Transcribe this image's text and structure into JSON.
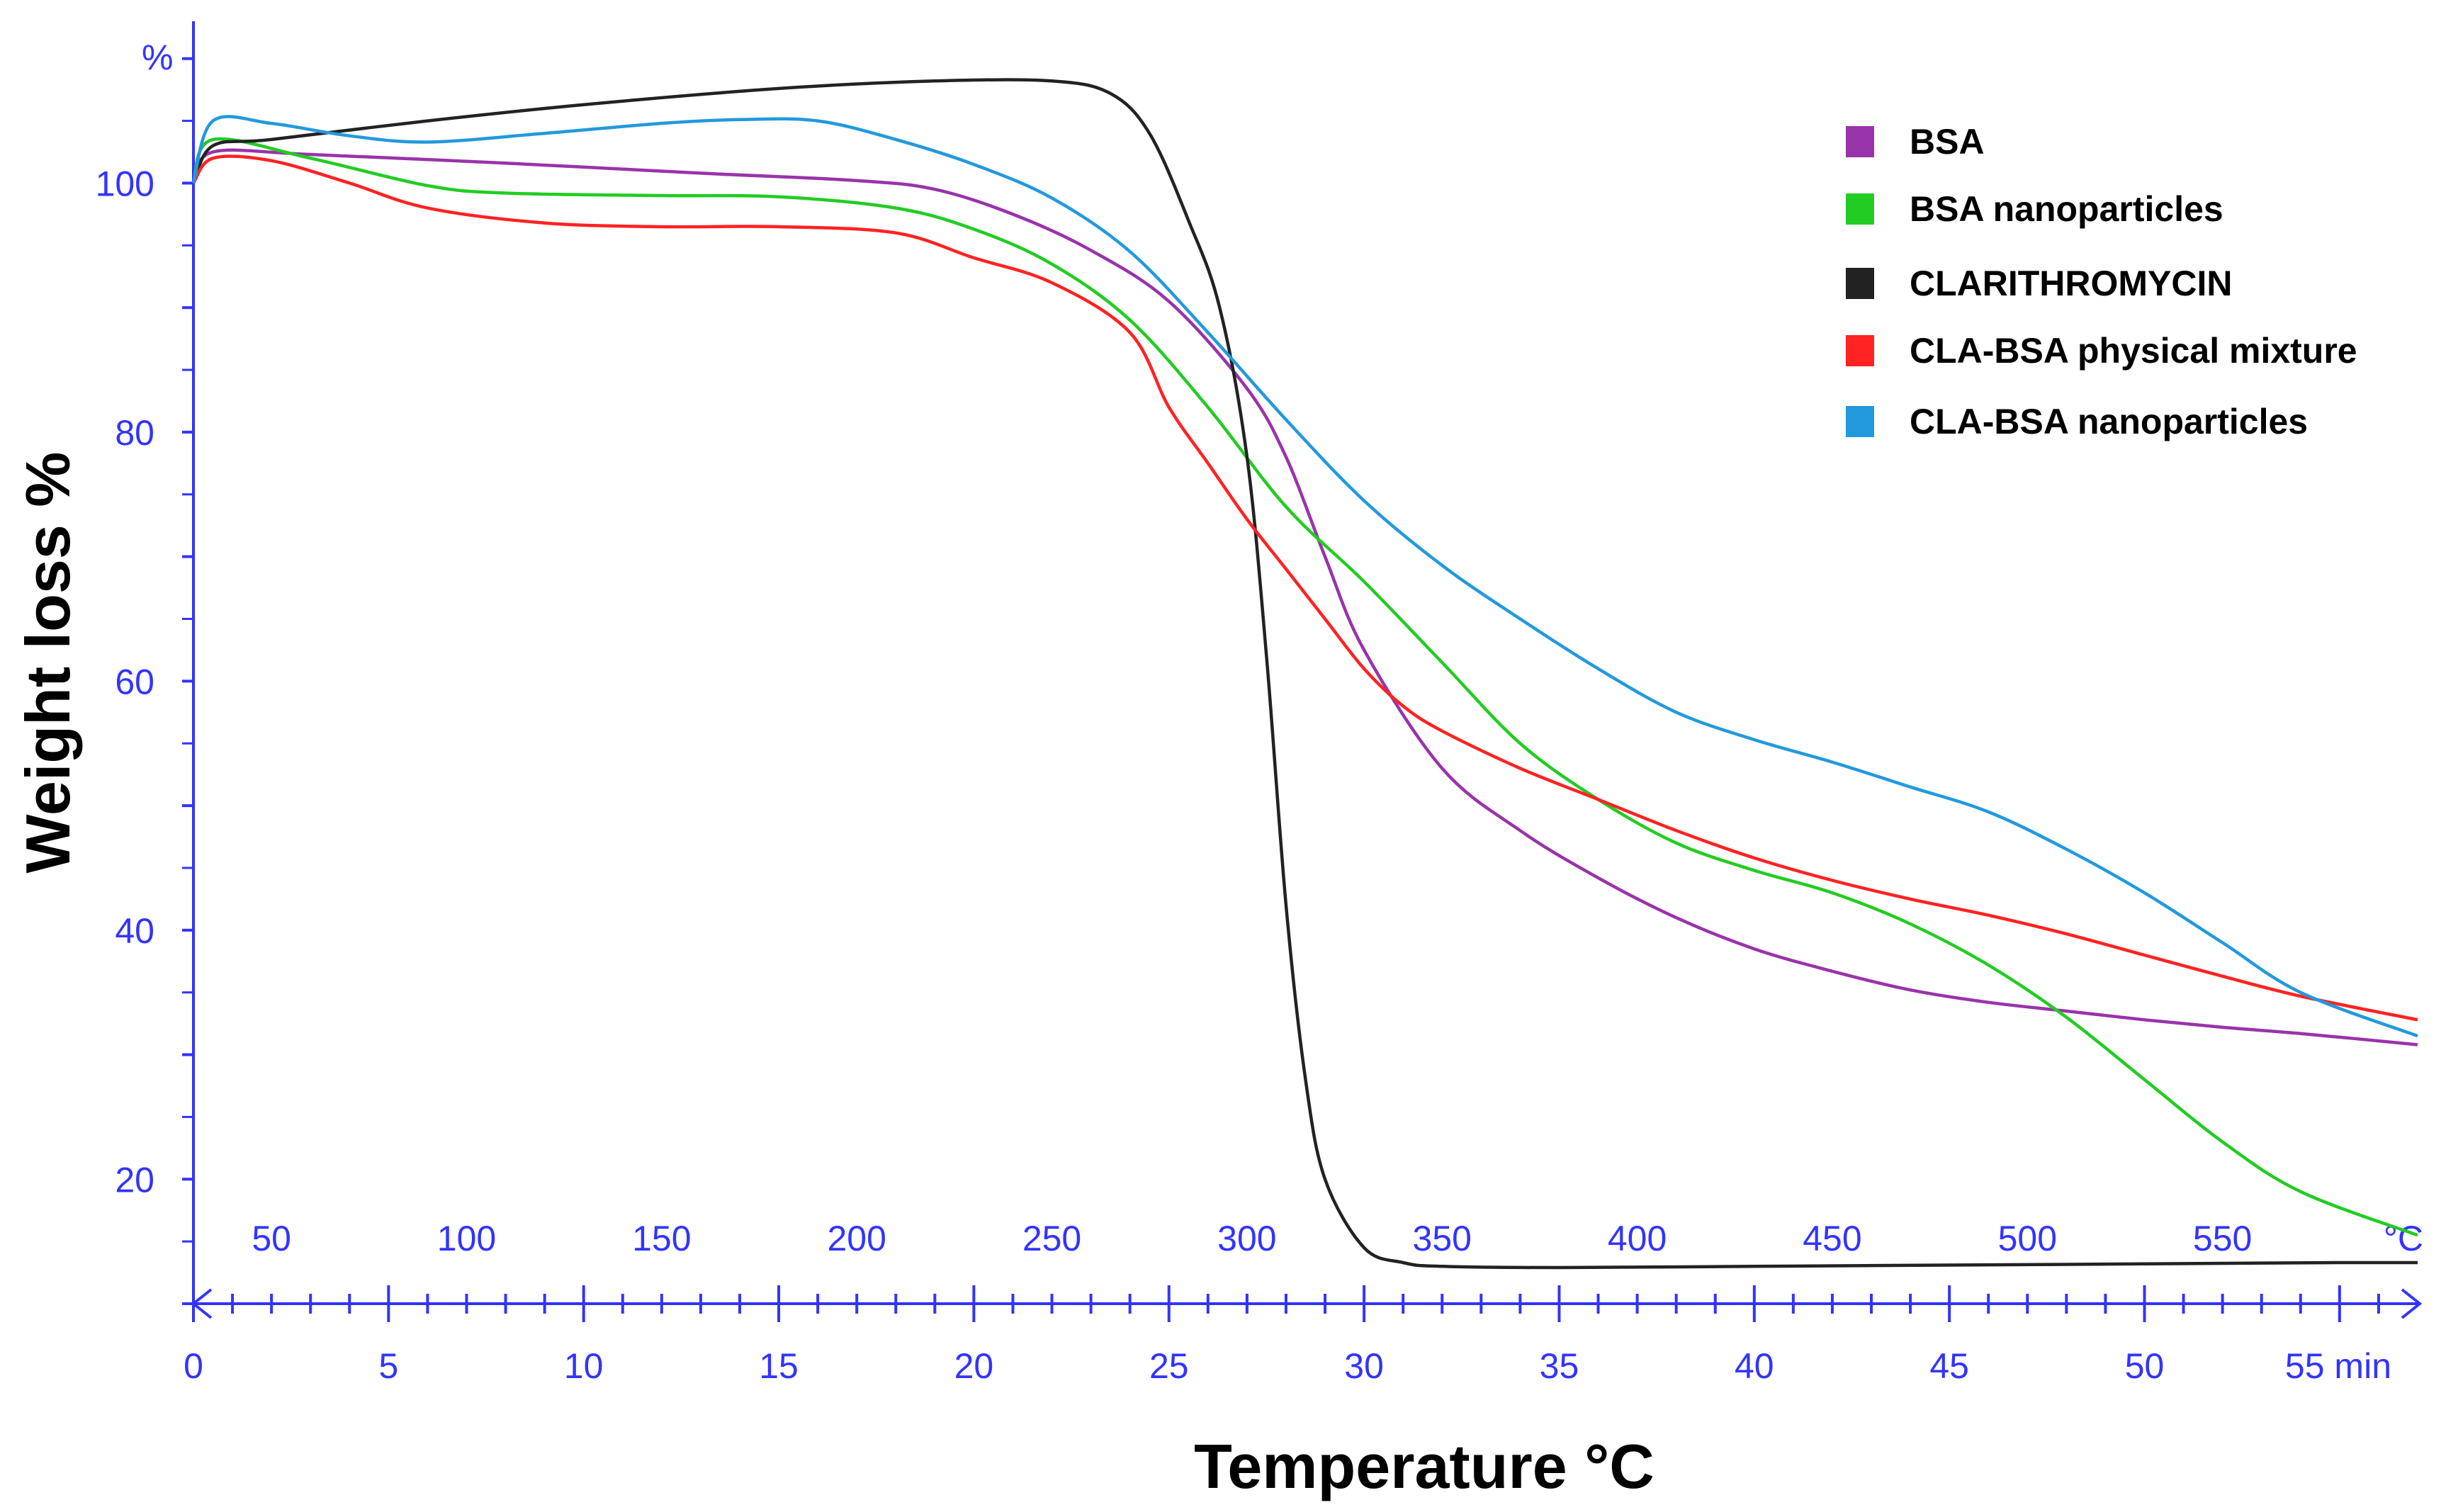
{
  "chart_data": {
    "type": "line",
    "title": "",
    "ylabel": "Weight loss %",
    "xlabel": "Temperature °C",
    "y_unit": "%",
    "temp_unit": "°C",
    "time_unit": "55 min",
    "ylim": [
      10,
      113
    ],
    "xlim_time": [
      0,
      57
    ],
    "y_ticks": [
      20,
      40,
      60,
      80,
      100
    ],
    "time_ticks": [
      {
        "value": 0,
        "label": "0"
      },
      {
        "value": 5,
        "label": "5"
      },
      {
        "value": 10,
        "label": "10"
      },
      {
        "value": 15,
        "label": "15"
      },
      {
        "value": 20,
        "label": "20"
      },
      {
        "value": 25,
        "label": "25"
      },
      {
        "value": 30,
        "label": "30"
      },
      {
        "value": 35,
        "label": "35"
      },
      {
        "value": 40,
        "label": "40"
      },
      {
        "value": 45,
        "label": "45"
      },
      {
        "value": 50,
        "label": "50"
      }
    ],
    "temp_ticks": [
      {
        "time": 2,
        "label": "50"
      },
      {
        "time": 7,
        "label": "100"
      },
      {
        "time": 12,
        "label": "150"
      },
      {
        "time": 17,
        "label": "200"
      },
      {
        "time": 22,
        "label": "250"
      },
      {
        "time": 27,
        "label": "300"
      },
      {
        "time": 32,
        "label": "350"
      },
      {
        "time": 37,
        "label": "400"
      },
      {
        "time": 42,
        "label": "450"
      },
      {
        "time": 47,
        "label": "500"
      },
      {
        "time": 52,
        "label": "550"
      }
    ],
    "series": [
      {
        "name": "BSA",
        "color": "#9933aa",
        "x": [
          0,
          0.5,
          3,
          8,
          13,
          17,
          19,
          21,
          23,
          25,
          27,
          28,
          29,
          30,
          32,
          34,
          36,
          38,
          40,
          42,
          44,
          46,
          48,
          50,
          52,
          54,
          57
        ],
        "y": [
          100,
          102.5,
          102.3,
          101.6,
          100.8,
          100.2,
          99.5,
          97.5,
          94.6,
          90.5,
          83.5,
          78,
          70,
          62.5,
          53,
          48,
          44.2,
          41,
          38.5,
          36.7,
          35.2,
          34.2,
          33.5,
          32.8,
          32.2,
          31.7,
          30.8
        ]
      },
      {
        "name": "BSA nanoparticles",
        "color": "#22cc22",
        "x": [
          0,
          0.5,
          3,
          6,
          8,
          12,
          15,
          18,
          20,
          22,
          24,
          26,
          28,
          30,
          32,
          34,
          36,
          38,
          40,
          42,
          44,
          46,
          48,
          50,
          52,
          54,
          57
        ],
        "y": [
          100,
          103.5,
          102,
          99.8,
          99.2,
          99,
          98.9,
          98,
          96.3,
          93.5,
          89,
          82,
          74,
          68,
          61.5,
          55,
          50.5,
          47,
          44.8,
          43,
          40.5,
          37.2,
          33,
          28,
          23,
          19,
          15.5
        ]
      },
      {
        "name": "CLARITHROMYCIN",
        "color": "#222222",
        "x": [
          0,
          0.5,
          2,
          6,
          10,
          15,
          19,
          22,
          23.5,
          24.5,
          25.5,
          26.3,
          27,
          27.5,
          28,
          28.5,
          29,
          30,
          31,
          32,
          35,
          40,
          45,
          50,
          55,
          57
        ],
        "y": [
          100,
          103,
          103.5,
          105,
          106.3,
          107.6,
          108.2,
          108.2,
          107.2,
          104,
          97,
          90,
          78,
          62,
          42,
          28,
          20,
          14.5,
          13.3,
          13,
          12.9,
          13,
          13.1,
          13.2,
          13.3,
          13.3
        ]
      },
      {
        "name": "CLA-BSA physical mixture",
        "color": "#ff2222",
        "x": [
          0,
          0.5,
          2,
          4,
          6,
          9,
          12,
          15,
          18,
          20,
          22,
          24,
          25,
          26,
          27,
          28,
          29,
          30,
          31,
          32,
          34,
          36,
          38,
          40,
          42,
          44,
          46,
          48,
          50,
          52,
          54,
          57
        ],
        "y": [
          100,
          102,
          101.8,
          100,
          98,
          96.8,
          96.5,
          96.5,
          96,
          94,
          92,
          88,
          82,
          77.5,
          73,
          69,
          65,
          61,
          58,
          56,
          53,
          50.5,
          48,
          45.8,
          44,
          42.5,
          41.2,
          39.7,
          38,
          36.3,
          34.7,
          32.8
        ]
      },
      {
        "name": "CLA-BSA nanoparticles",
        "color": "#2299dd",
        "x": [
          0,
          0.5,
          2,
          4,
          6,
          9,
          12,
          14,
          16,
          18,
          20,
          22,
          24,
          26,
          28,
          30,
          32,
          34,
          36,
          38,
          40,
          42,
          44,
          46,
          48,
          50,
          52,
          54,
          57
        ],
        "y": [
          100,
          105,
          104.8,
          103.8,
          103.3,
          104,
          104.8,
          105.1,
          105,
          103.5,
          101.5,
          98.8,
          94.5,
          88,
          81,
          74.5,
          69.3,
          65,
          61,
          57.5,
          55.3,
          53.5,
          51.5,
          49.5,
          46.5,
          43,
          39,
          35,
          31.5
        ]
      }
    ]
  }
}
